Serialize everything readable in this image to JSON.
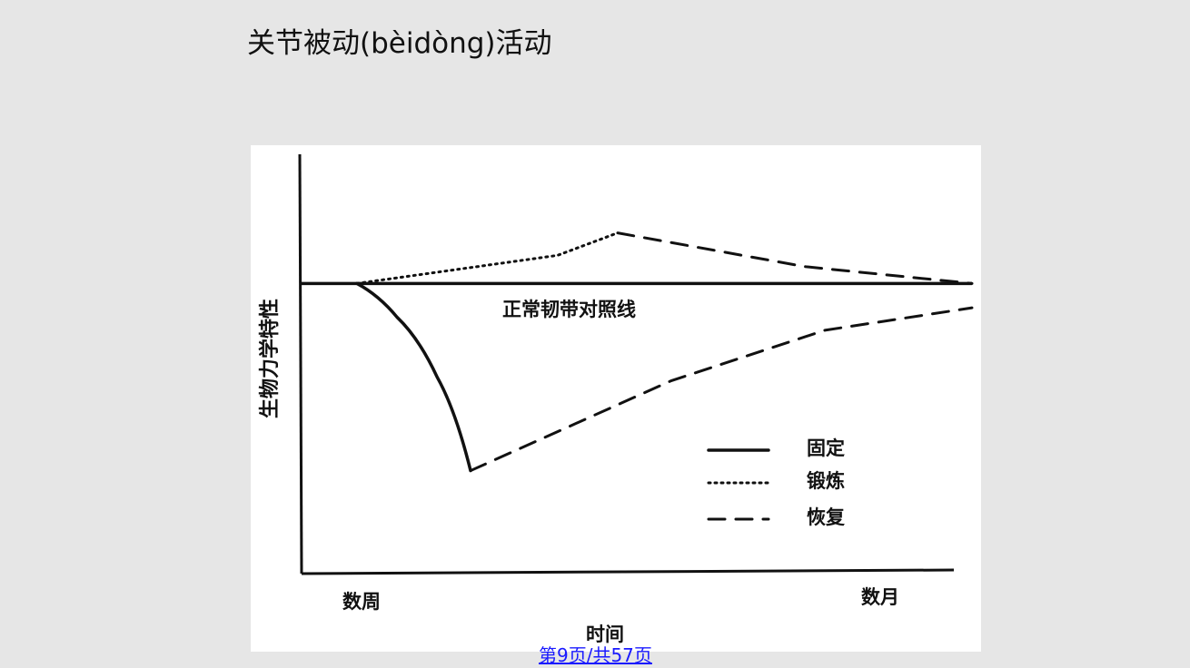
{
  "slide": {
    "title": "关节被动(bèidòng)活动",
    "page_number": "第9页/共57页"
  },
  "chart_data": {
    "type": "line",
    "title": "",
    "xlabel": "时间",
    "ylabel": "生物力学特性",
    "x_tick_labels": [
      "数周",
      "数月"
    ],
    "reference_line_label": "正常韧带对照线",
    "legend": {
      "placement": "lower-right",
      "entries": [
        {
          "name": "固定",
          "style": "solid"
        },
        {
          "name": "锻炼",
          "style": "dotted"
        },
        {
          "name": "恢复",
          "style": "dashed"
        }
      ]
    },
    "series": [
      {
        "name": "固定",
        "style": "solid",
        "x": [
          0.08,
          0.14,
          0.2,
          0.25
        ],
        "y": [
          0,
          -0.18,
          -0.5,
          -1.0
        ]
      },
      {
        "name": "锻炼",
        "style": "dotted",
        "x": [
          0.08,
          0.2,
          0.38,
          0.47
        ],
        "y": [
          0,
          0.06,
          0.15,
          0.27
        ]
      },
      {
        "name": "恢复",
        "style": "dashed",
        "x": [
          0.47,
          0.75,
          1.0
        ],
        "y": [
          0.27,
          0.09,
          0
        ]
      },
      {
        "name": "恢复",
        "style": "dashed",
        "x": [
          0.25,
          0.55,
          0.78,
          1.0
        ],
        "y": [
          -1.0,
          -0.52,
          -0.25,
          -0.13
        ]
      }
    ],
    "xlim": [
      0,
      1
    ],
    "ylim": [
      -1.55,
      0.69
    ],
    "grid": false
  }
}
